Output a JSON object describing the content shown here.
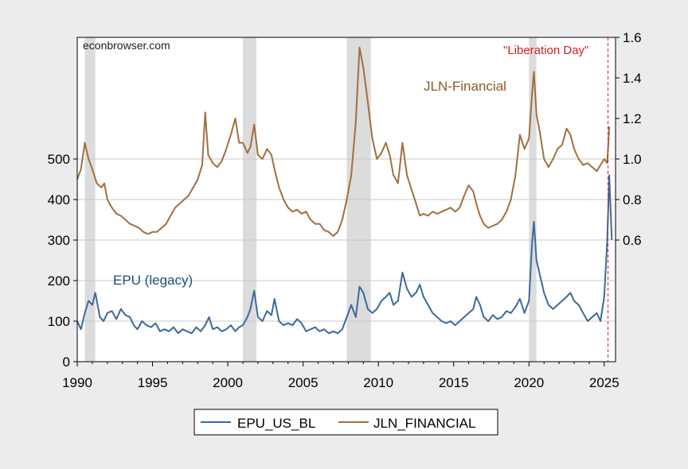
{
  "chart_data": {
    "type": "line",
    "watermark": "econbrowser.com",
    "annotations": {
      "epu_label": "EPU (legacy)",
      "jln_label": "JLN-Financial",
      "event_label": "\"Liberation Day\""
    },
    "x_axis": {
      "range": [
        1990,
        2025.75
      ],
      "ticks": [
        1990,
        1995,
        2000,
        2005,
        2010,
        2015,
        2020,
        2025
      ]
    },
    "y_left": {
      "range": [
        0,
        800
      ],
      "ticks": [
        0,
        100,
        200,
        300,
        400,
        500
      ]
    },
    "y_right": {
      "range": [
        -0.0,
        1.6
      ],
      "ticks": [
        0.6,
        0.8,
        1.0,
        1.2,
        1.4,
        1.6
      ]
    },
    "recessions": [
      [
        1990.5,
        1991.2
      ],
      [
        2001.0,
        2001.9
      ],
      [
        2007.9,
        2009.5
      ],
      [
        2020.0,
        2020.5
      ]
    ],
    "event_line_x": 2025.25,
    "grid": true,
    "legend_placement": "bottom-center",
    "colors": {
      "epu": "#3d6a99",
      "jln": "#a0703f",
      "event": "#cc2222",
      "recession": "#dcdcdc"
    },
    "series": [
      {
        "name": "EPU_US_BL",
        "axis": "left",
        "points": [
          [
            1990.0,
            100
          ],
          [
            1990.25,
            80
          ],
          [
            1990.5,
            120
          ],
          [
            1990.75,
            150
          ],
          [
            1991.0,
            140
          ],
          [
            1991.2,
            170
          ],
          [
            1991.5,
            110
          ],
          [
            1991.75,
            100
          ],
          [
            1992.0,
            120
          ],
          [
            1992.3,
            125
          ],
          [
            1992.6,
            105
          ],
          [
            1992.9,
            130
          ],
          [
            1993.2,
            115
          ],
          [
            1993.5,
            110
          ],
          [
            1993.75,
            90
          ],
          [
            1994.0,
            80
          ],
          [
            1994.3,
            100
          ],
          [
            1994.6,
            90
          ],
          [
            1994.9,
            85
          ],
          [
            1995.2,
            95
          ],
          [
            1995.5,
            75
          ],
          [
            1995.8,
            80
          ],
          [
            1996.1,
            75
          ],
          [
            1996.4,
            85
          ],
          [
            1996.7,
            70
          ],
          [
            1997.0,
            80
          ],
          [
            1997.3,
            75
          ],
          [
            1997.6,
            70
          ],
          [
            1997.9,
            85
          ],
          [
            1998.2,
            75
          ],
          [
            1998.5,
            90
          ],
          [
            1998.75,
            110
          ],
          [
            1999.0,
            80
          ],
          [
            1999.3,
            85
          ],
          [
            1999.6,
            75
          ],
          [
            1999.9,
            80
          ],
          [
            2000.2,
            90
          ],
          [
            2000.5,
            75
          ],
          [
            2000.75,
            85
          ],
          [
            2001.0,
            90
          ],
          [
            2001.3,
            110
          ],
          [
            2001.5,
            130
          ],
          [
            2001.75,
            175
          ],
          [
            2002.0,
            110
          ],
          [
            2002.3,
            100
          ],
          [
            2002.6,
            125
          ],
          [
            2002.9,
            115
          ],
          [
            2003.1,
            155
          ],
          [
            2003.4,
            100
          ],
          [
            2003.7,
            90
          ],
          [
            2004.0,
            95
          ],
          [
            2004.3,
            90
          ],
          [
            2004.6,
            105
          ],
          [
            2004.9,
            95
          ],
          [
            2005.2,
            75
          ],
          [
            2005.5,
            80
          ],
          [
            2005.8,
            85
          ],
          [
            2006.1,
            75
          ],
          [
            2006.4,
            80
          ],
          [
            2006.7,
            70
          ],
          [
            2007.0,
            75
          ],
          [
            2007.3,
            70
          ],
          [
            2007.6,
            80
          ],
          [
            2007.9,
            110
          ],
          [
            2008.2,
            140
          ],
          [
            2008.5,
            110
          ],
          [
            2008.75,
            185
          ],
          [
            2009.0,
            170
          ],
          [
            2009.3,
            130
          ],
          [
            2009.6,
            120
          ],
          [
            2009.9,
            130
          ],
          [
            2010.2,
            150
          ],
          [
            2010.5,
            160
          ],
          [
            2010.75,
            170
          ],
          [
            2011.0,
            140
          ],
          [
            2011.3,
            150
          ],
          [
            2011.6,
            220
          ],
          [
            2011.9,
            180
          ],
          [
            2012.2,
            160
          ],
          [
            2012.5,
            170
          ],
          [
            2012.75,
            190
          ],
          [
            2013.0,
            160
          ],
          [
            2013.3,
            140
          ],
          [
            2013.6,
            120
          ],
          [
            2013.9,
            110
          ],
          [
            2014.2,
            100
          ],
          [
            2014.5,
            95
          ],
          [
            2014.8,
            100
          ],
          [
            2015.1,
            90
          ],
          [
            2015.4,
            100
          ],
          [
            2015.7,
            110
          ],
          [
            2016.0,
            120
          ],
          [
            2016.3,
            130
          ],
          [
            2016.5,
            160
          ],
          [
            2016.75,
            140
          ],
          [
            2017.0,
            110
          ],
          [
            2017.3,
            100
          ],
          [
            2017.6,
            115
          ],
          [
            2017.9,
            105
          ],
          [
            2018.2,
            110
          ],
          [
            2018.5,
            125
          ],
          [
            2018.8,
            120
          ],
          [
            2019.1,
            135
          ],
          [
            2019.4,
            155
          ],
          [
            2019.7,
            120
          ],
          [
            2020.0,
            150
          ],
          [
            2020.2,
            290
          ],
          [
            2020.33,
            345
          ],
          [
            2020.5,
            250
          ],
          [
            2020.75,
            210
          ],
          [
            2021.0,
            170
          ],
          [
            2021.3,
            140
          ],
          [
            2021.6,
            130
          ],
          [
            2021.9,
            140
          ],
          [
            2022.2,
            150
          ],
          [
            2022.5,
            160
          ],
          [
            2022.75,
            170
          ],
          [
            2023.0,
            150
          ],
          [
            2023.3,
            140
          ],
          [
            2023.6,
            120
          ],
          [
            2023.9,
            100
          ],
          [
            2024.2,
            110
          ],
          [
            2024.5,
            120
          ],
          [
            2024.75,
            100
          ],
          [
            2025.0,
            160
          ],
          [
            2025.2,
            300
          ],
          [
            2025.33,
            460
          ],
          [
            2025.5,
            300
          ]
        ]
      },
      {
        "name": "JLN_FINANCIAL",
        "axis": "right",
        "points": [
          [
            1990.0,
            0.9
          ],
          [
            1990.25,
            0.95
          ],
          [
            1990.5,
            1.08
          ],
          [
            1990.75,
            1.0
          ],
          [
            1991.0,
            0.95
          ],
          [
            1991.3,
            0.88
          ],
          [
            1991.6,
            0.86
          ],
          [
            1991.8,
            0.88
          ],
          [
            1992.0,
            0.8
          ],
          [
            1992.3,
            0.76
          ],
          [
            1992.6,
            0.73
          ],
          [
            1992.9,
            0.72
          ],
          [
            1993.2,
            0.7
          ],
          [
            1993.5,
            0.68
          ],
          [
            1993.8,
            0.67
          ],
          [
            1994.1,
            0.66
          ],
          [
            1994.4,
            0.64
          ],
          [
            1994.7,
            0.63
          ],
          [
            1995.0,
            0.64
          ],
          [
            1995.3,
            0.64
          ],
          [
            1995.6,
            0.66
          ],
          [
            1995.9,
            0.68
          ],
          [
            1996.2,
            0.72
          ],
          [
            1996.5,
            0.76
          ],
          [
            1996.8,
            0.78
          ],
          [
            1997.1,
            0.8
          ],
          [
            1997.4,
            0.82
          ],
          [
            1997.7,
            0.86
          ],
          [
            1998.0,
            0.9
          ],
          [
            1998.3,
            0.97
          ],
          [
            1998.5,
            1.23
          ],
          [
            1998.7,
            1.02
          ],
          [
            1999.0,
            0.98
          ],
          [
            1999.3,
            0.96
          ],
          [
            1999.6,
            0.99
          ],
          [
            1999.9,
            1.05
          ],
          [
            2000.2,
            1.12
          ],
          [
            2000.5,
            1.2
          ],
          [
            2000.75,
            1.08
          ],
          [
            2001.0,
            1.08
          ],
          [
            2001.3,
            1.03
          ],
          [
            2001.5,
            1.06
          ],
          [
            2001.75,
            1.17
          ],
          [
            2002.0,
            1.02
          ],
          [
            2002.3,
            1.0
          ],
          [
            2002.6,
            1.05
          ],
          [
            2002.9,
            1.02
          ],
          [
            2003.1,
            0.95
          ],
          [
            2003.4,
            0.86
          ],
          [
            2003.7,
            0.8
          ],
          [
            2004.0,
            0.76
          ],
          [
            2004.3,
            0.74
          ],
          [
            2004.6,
            0.75
          ],
          [
            2004.9,
            0.73
          ],
          [
            2005.2,
            0.74
          ],
          [
            2005.5,
            0.7
          ],
          [
            2005.8,
            0.68
          ],
          [
            2006.1,
            0.68
          ],
          [
            2006.4,
            0.65
          ],
          [
            2006.7,
            0.64
          ],
          [
            2007.0,
            0.62
          ],
          [
            2007.3,
            0.64
          ],
          [
            2007.6,
            0.7
          ],
          [
            2007.9,
            0.8
          ],
          [
            2008.2,
            0.92
          ],
          [
            2008.5,
            1.18
          ],
          [
            2008.75,
            1.55
          ],
          [
            2009.0,
            1.45
          ],
          [
            2009.3,
            1.28
          ],
          [
            2009.6,
            1.1
          ],
          [
            2009.9,
            1.0
          ],
          [
            2010.2,
            1.03
          ],
          [
            2010.5,
            1.08
          ],
          [
            2010.75,
            1.02
          ],
          [
            2011.0,
            0.92
          ],
          [
            2011.3,
            0.88
          ],
          [
            2011.6,
            1.08
          ],
          [
            2011.9,
            0.92
          ],
          [
            2012.2,
            0.85
          ],
          [
            2012.5,
            0.78
          ],
          [
            2012.75,
            0.72
          ],
          [
            2013.0,
            0.73
          ],
          [
            2013.3,
            0.72
          ],
          [
            2013.6,
            0.74
          ],
          [
            2013.9,
            0.73
          ],
          [
            2014.2,
            0.74
          ],
          [
            2014.5,
            0.75
          ],
          [
            2014.8,
            0.76
          ],
          [
            2015.1,
            0.74
          ],
          [
            2015.4,
            0.76
          ],
          [
            2015.7,
            0.82
          ],
          [
            2016.0,
            0.87
          ],
          [
            2016.3,
            0.84
          ],
          [
            2016.5,
            0.78
          ],
          [
            2016.75,
            0.72
          ],
          [
            2017.0,
            0.68
          ],
          [
            2017.3,
            0.66
          ],
          [
            2017.6,
            0.67
          ],
          [
            2017.9,
            0.68
          ],
          [
            2018.2,
            0.7
          ],
          [
            2018.5,
            0.74
          ],
          [
            2018.8,
            0.8
          ],
          [
            2019.1,
            0.92
          ],
          [
            2019.4,
            1.12
          ],
          [
            2019.7,
            1.05
          ],
          [
            2020.0,
            1.1
          ],
          [
            2020.2,
            1.32
          ],
          [
            2020.33,
            1.43
          ],
          [
            2020.5,
            1.22
          ],
          [
            2020.75,
            1.12
          ],
          [
            2021.0,
            1.0
          ],
          [
            2021.3,
            0.96
          ],
          [
            2021.6,
            1.0
          ],
          [
            2021.9,
            1.05
          ],
          [
            2022.2,
            1.07
          ],
          [
            2022.5,
            1.15
          ],
          [
            2022.75,
            1.12
          ],
          [
            2023.0,
            1.05
          ],
          [
            2023.3,
            1.0
          ],
          [
            2023.6,
            0.97
          ],
          [
            2023.9,
            0.98
          ],
          [
            2024.2,
            0.96
          ],
          [
            2024.5,
            0.94
          ],
          [
            2024.75,
            0.97
          ],
          [
            2025.0,
            1.0
          ],
          [
            2025.2,
            0.98
          ],
          [
            2025.33,
            1.16
          ]
        ]
      }
    ]
  }
}
